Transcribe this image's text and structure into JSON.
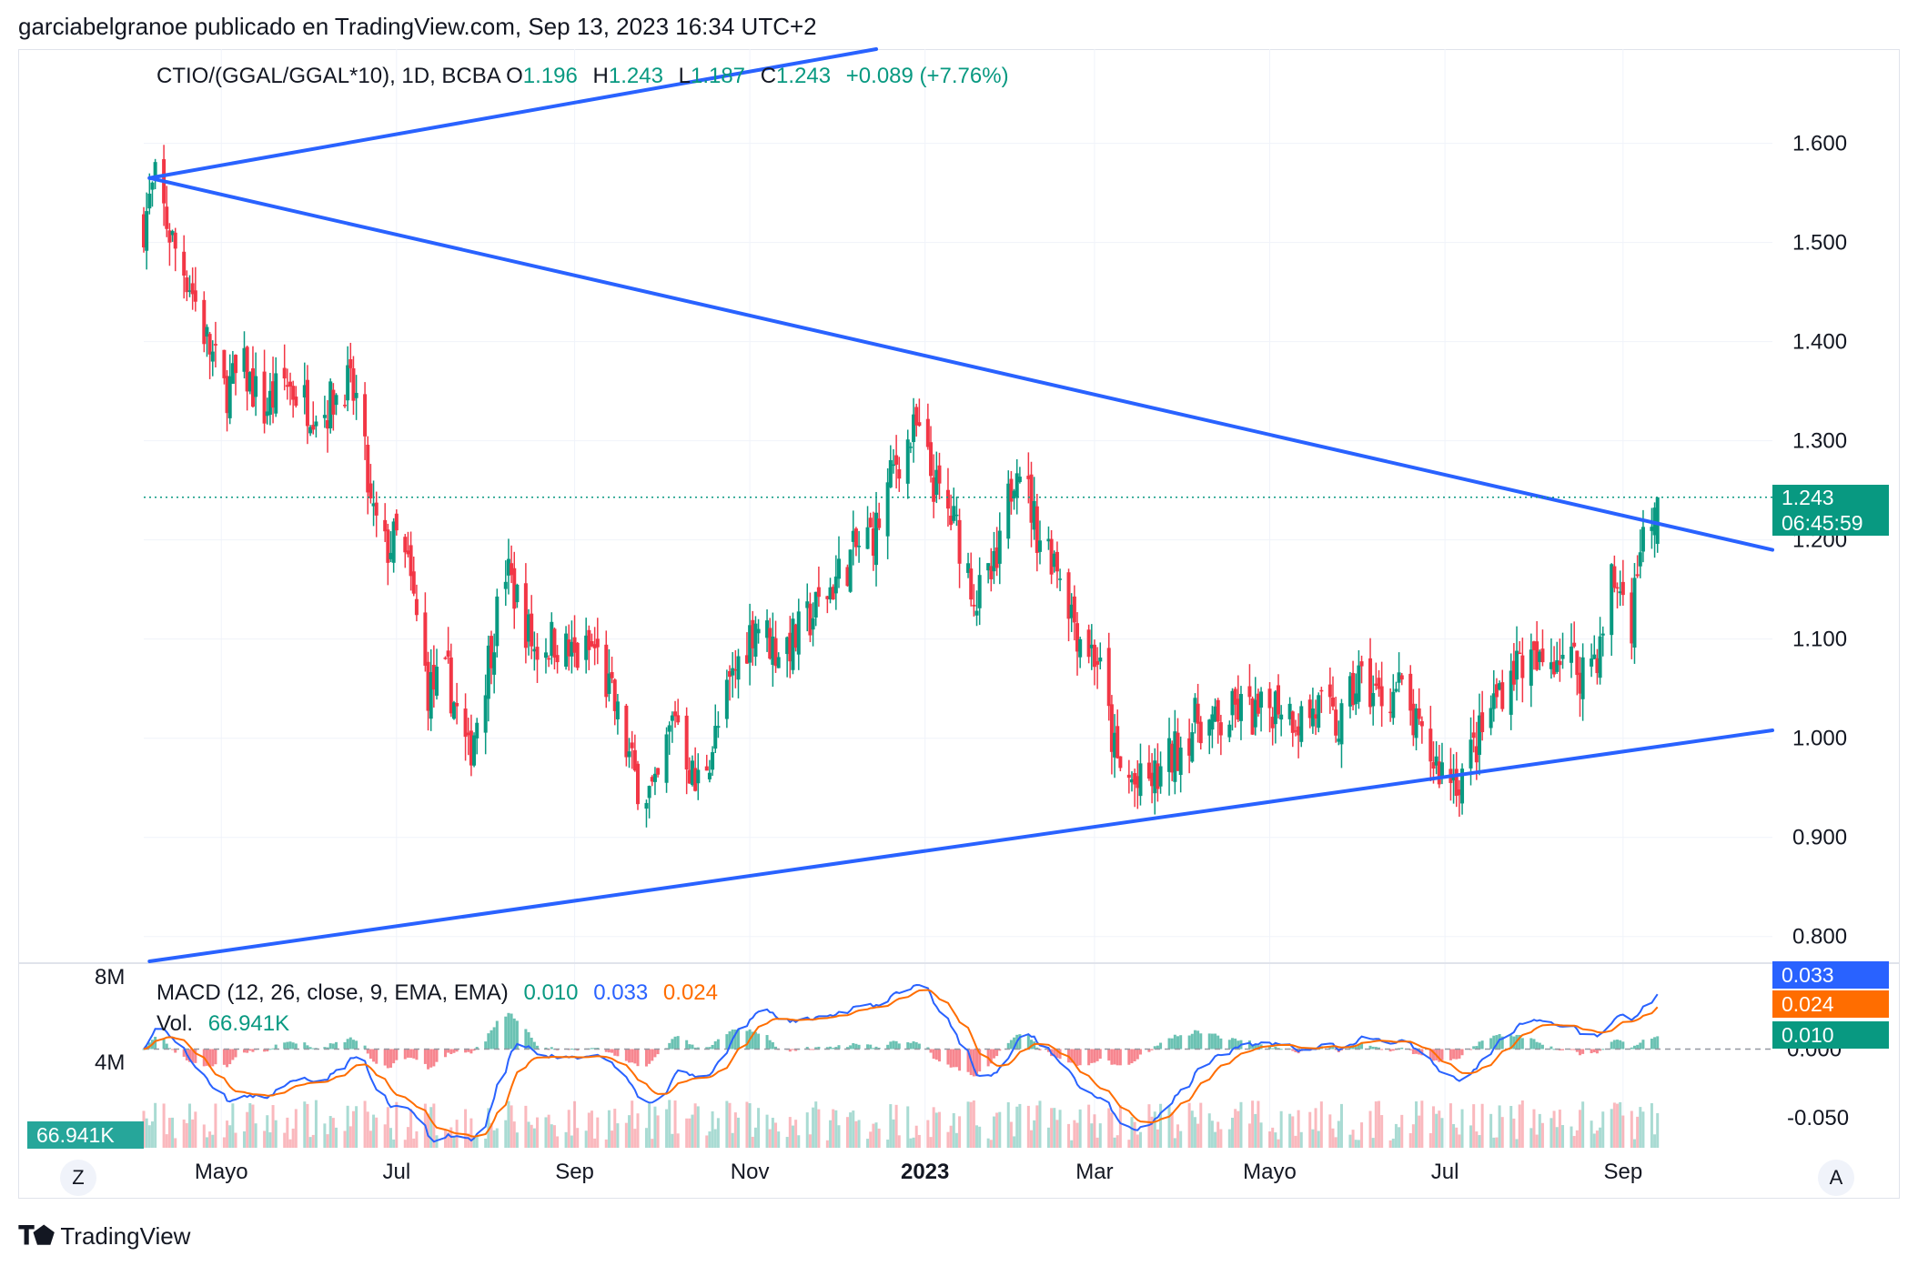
{
  "header": {
    "text": "garciabelgranoe publicado en TradingView.com, Sep 13, 2023 16:34 UTC+2"
  },
  "legend": {
    "symbol": "CTIO/(GGAL/GGAL*10), 1D, BCBA",
    "o_label": "O",
    "o_value": "1.196",
    "h_label": "H",
    "h_value": "1.243",
    "l_label": "L",
    "l_value": "1.187",
    "c_label": "C",
    "c_value": "1.243",
    "change": "+0.089 (+7.76%)"
  },
  "macd_legend": {
    "label": "MACD (12, 26, close, 9, EMA, EMA)",
    "hist": "0.010",
    "macd": "0.033",
    "signal": "0.024"
  },
  "vol_legend": {
    "label": "Vol.",
    "value": "66.941K"
  },
  "price_badge": {
    "price": "1.243",
    "countdown": "06:45:59"
  },
  "macd_badges": {
    "macd": "0.033",
    "signal": "0.024",
    "hist": "0.010"
  },
  "vol_badge": "66.941K",
  "buttons": {
    "left": "Z",
    "right": "A"
  },
  "footer": {
    "brand": "TradingView"
  },
  "colors": {
    "up": "#089981",
    "down": "#f23645",
    "trend": "#2962ff",
    "macd": "#2962ff",
    "signal": "#ff6d00"
  },
  "chart_data": [
    {
      "type": "candlestick",
      "title": "CTIO/(GGAL/GGAL*10), 1D, BCBA",
      "price_axis_ticks": [
        1.6,
        1.5,
        1.4,
        1.3,
        1.2,
        1.1,
        1.0,
        0.9,
        0.8
      ],
      "y_tick_labels": [
        "1.600",
        "1.500",
        "1.400",
        "1.300",
        "1.200",
        "1.100",
        "1.000",
        "0.900",
        "0.800"
      ],
      "ylim": [
        0.775,
        1.695
      ],
      "x_tick_labels": [
        {
          "label": "Mayo",
          "date": "2022-05-01"
        },
        {
          "label": "Jul",
          "date": "2022-07-01"
        },
        {
          "label": "Sep",
          "date": "2022-09-01"
        },
        {
          "label": "Nov",
          "date": "2022-11-01"
        },
        {
          "label": "2023",
          "date": "2023-01-01",
          "bold": true
        },
        {
          "label": "Mar",
          "date": "2023-03-01"
        },
        {
          "label": "Mayo",
          "date": "2023-05-01"
        },
        {
          "label": "Jul",
          "date": "2023-07-01"
        },
        {
          "label": "Sep",
          "date": "2023-09-01"
        }
      ],
      "x_range": [
        "2022-04-04",
        "2023-10-23"
      ],
      "close_path": [
        [
          "2022-04-04",
          1.52
        ],
        [
          "2022-04-08",
          1.56
        ],
        [
          "2022-04-14",
          1.5
        ],
        [
          "2022-04-20",
          1.46
        ],
        [
          "2022-04-26",
          1.4
        ],
        [
          "2022-05-02",
          1.35
        ],
        [
          "2022-05-09",
          1.37
        ],
        [
          "2022-05-16",
          1.33
        ],
        [
          "2022-05-23",
          1.36
        ],
        [
          "2022-05-30",
          1.34
        ],
        [
          "2022-06-06",
          1.33
        ],
        [
          "2022-06-13",
          1.36
        ],
        [
          "2022-06-17",
          1.34
        ],
        [
          "2022-06-20",
          1.28
        ],
        [
          "2022-06-22",
          1.23
        ],
        [
          "2022-06-27",
          1.19
        ],
        [
          "2022-07-01",
          1.2
        ],
        [
          "2022-07-05",
          1.17
        ],
        [
          "2022-07-12",
          1.05
        ],
        [
          "2022-07-19",
          1.06
        ],
        [
          "2022-07-26",
          0.98
        ],
        [
          "2022-08-02",
          1.08
        ],
        [
          "2022-08-08",
          1.17
        ],
        [
          "2022-08-12",
          1.14
        ],
        [
          "2022-08-18",
          1.09
        ],
        [
          "2022-08-25",
          1.1
        ],
        [
          "2022-09-01",
          1.08
        ],
        [
          "2022-09-08",
          1.09
        ],
        [
          "2022-09-15",
          1.03
        ],
        [
          "2022-09-22",
          0.96
        ],
        [
          "2022-09-29",
          0.94
        ],
        [
          "2022-10-06",
          1.03
        ],
        [
          "2022-10-13",
          0.95
        ],
        [
          "2022-10-20",
          1.0
        ],
        [
          "2022-10-27",
          1.07
        ],
        [
          "2022-11-03",
          1.12
        ],
        [
          "2022-11-10",
          1.09
        ],
        [
          "2022-11-17",
          1.1
        ],
        [
          "2022-11-24",
          1.13
        ],
        [
          "2022-12-01",
          1.16
        ],
        [
          "2022-12-08",
          1.19
        ],
        [
          "2022-12-15",
          1.21
        ],
        [
          "2022-12-22",
          1.28
        ],
        [
          "2022-12-29",
          1.31
        ],
        [
          "2023-01-05",
          1.25
        ],
        [
          "2023-01-12",
          1.21
        ],
        [
          "2023-01-19",
          1.14
        ],
        [
          "2023-01-26",
          1.17
        ],
        [
          "2023-02-02",
          1.29
        ],
        [
          "2023-02-09",
          1.21
        ],
        [
          "2023-02-16",
          1.18
        ],
        [
          "2023-02-23",
          1.11
        ],
        [
          "2023-03-02",
          1.08
        ],
        [
          "2023-03-09",
          0.97
        ],
        [
          "2023-03-16",
          0.95
        ],
        [
          "2023-03-23",
          0.96
        ],
        [
          "2023-03-30",
          0.99
        ],
        [
          "2023-04-06",
          1.02
        ],
        [
          "2023-04-13",
          1.01
        ],
        [
          "2023-04-20",
          1.03
        ],
        [
          "2023-04-27",
          1.02
        ],
        [
          "2023-05-04",
          1.04
        ],
        [
          "2023-05-11",
          1.02
        ],
        [
          "2023-05-18",
          1.03
        ],
        [
          "2023-05-25",
          1.01
        ],
        [
          "2023-06-01",
          1.06
        ],
        [
          "2023-06-08",
          1.04
        ],
        [
          "2023-06-15",
          1.05
        ],
        [
          "2023-06-22",
          1.0
        ],
        [
          "2023-06-29",
          0.97
        ],
        [
          "2023-07-06",
          0.96
        ],
        [
          "2023-07-13",
          1.0
        ],
        [
          "2023-07-20",
          1.05
        ],
        [
          "2023-07-27",
          1.08
        ],
        [
          "2023-08-03",
          1.07
        ],
        [
          "2023-08-10",
          1.09
        ],
        [
          "2023-08-17",
          1.07
        ],
        [
          "2023-08-24",
          1.09
        ],
        [
          "2023-08-28",
          1.16
        ],
        [
          "2023-08-31",
          1.15
        ],
        [
          "2023-09-04",
          1.12
        ],
        [
          "2023-09-07",
          1.2
        ],
        [
          "2023-09-11",
          1.2
        ],
        [
          "2023-09-13",
          1.243
        ]
      ],
      "last": {
        "o": 1.196,
        "h": 1.243,
        "l": 1.187,
        "c": 1.243
      },
      "trendlines": [
        {
          "name": "upper-outer",
          "from": [
            "2022-04-06",
            1.565
          ],
          "to": [
            "2022-12-15",
            1.695
          ]
        },
        {
          "name": "descending",
          "from": [
            "2022-04-06",
            1.565
          ],
          "to": [
            "2023-10-23",
            1.19
          ]
        },
        {
          "name": "ascending",
          "from": [
            "2022-04-06",
            0.775
          ],
          "to": [
            "2023-10-23",
            1.008
          ]
        }
      ]
    },
    {
      "type": "macd",
      "title": "MACD (12, 26, close, 9, EMA, EMA)",
      "y_tick_labels": [
        "0.000",
        "-0.050"
      ],
      "values": {
        "histogram": 0.01,
        "macd": 0.033,
        "signal": 0.024
      },
      "ylim": [
        -0.072,
        0.062
      ]
    },
    {
      "type": "volume",
      "title": "Vol.",
      "y_tick_labels": [
        "8M",
        "4M"
      ],
      "last": "66.941K"
    }
  ]
}
